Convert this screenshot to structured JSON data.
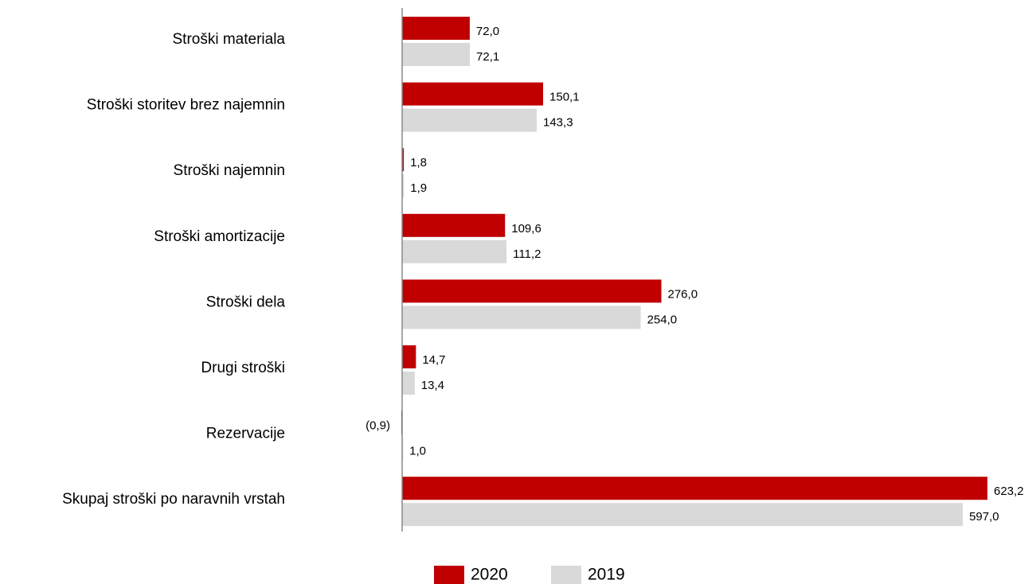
{
  "chart_data": {
    "type": "bar",
    "orientation": "horizontal",
    "categories": [
      "Stroški materiala",
      "Stroški storitev brez najemnin",
      "Stroški najemnin",
      "Stroški amortizacije",
      "Stroški dela",
      "Drugi stroški",
      "Rezervacije",
      "Skupaj stroški po naravnih vrstah"
    ],
    "series": [
      {
        "name": "2020",
        "color": "#c00000",
        "values": [
          72.0,
          150.1,
          1.8,
          109.6,
          276.0,
          14.7,
          -0.9,
          623.2
        ],
        "value_labels": [
          "72,0",
          "150,1",
          "1,8",
          "109,6",
          "276,0",
          "14,7",
          "(0,9)",
          "623,2"
        ]
      },
      {
        "name": "2019",
        "color": "#d9d9d9",
        "values": [
          72.1,
          143.3,
          1.9,
          111.2,
          254.0,
          13.4,
          1.0,
          597.0
        ],
        "value_labels": [
          "72,1",
          "143,3",
          "1,9",
          "111,2",
          "254,0",
          "13,4",
          "1,0",
          "597,0"
        ]
      }
    ],
    "legend": "bottom"
  }
}
